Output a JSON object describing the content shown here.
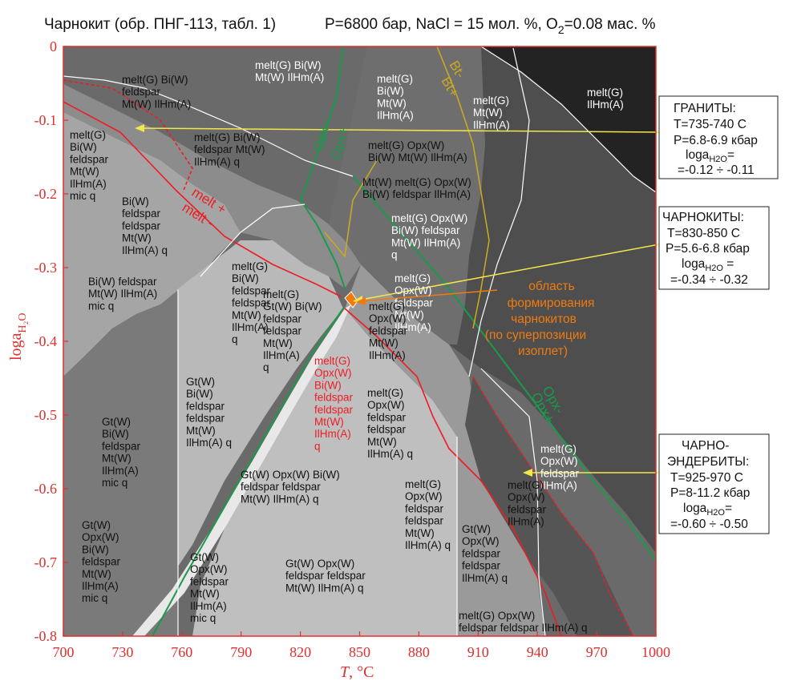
{
  "title": {
    "left": "Чарнокит (обр. ПНГ-113, табл. 1)",
    "right_pre": "P=6800 бар, NaCl = 15 мол. %, O",
    "right_sub": "2",
    "right_post": "=0.08 мас. %"
  },
  "axes": {
    "x": {
      "label_main": "T",
      "label_unit": ", °C",
      "range": [
        700,
        1000
      ],
      "ticks": [
        "700",
        "730",
        "760",
        "790",
        "820",
        "850",
        "880",
        "910",
        "940",
        "970",
        "1000"
      ]
    },
    "y": {
      "label_main": "loga",
      "label_sub": "H₂O",
      "range": [
        -0.8,
        0
      ],
      "ticks": [
        "0",
        "-0.1",
        "-0.2",
        "-0.3",
        "-0.4",
        "-0.5",
        "-0.6",
        "-0.7",
        "-0.8"
      ]
    }
  },
  "boundary_labels": {
    "melt_plus": "melt +",
    "melt_minus": "melt -",
    "opx_minus_top": "Opx-",
    "opx_plus_top": "Opx+",
    "bt_minus": "Bt-",
    "bt_plus": "Bt+",
    "opx_minus_right": "Opx-",
    "opx_plus_right": "Opx+"
  },
  "fields": [
    {
      "lines": [
        "melt(G) Bi(W)",
        "feldspar",
        "Mt(W) IlHm(A)"
      ],
      "color": "#111111"
    },
    {
      "lines": [
        "melt(G) Bi(W)",
        "Mt(W) IlHm(A)"
      ],
      "color": "#ffffff"
    },
    {
      "lines": [
        "melt(G)",
        "Bi(W)",
        "Mt(W)",
        "IlHm(A)"
      ],
      "color": "#ffffff"
    },
    {
      "lines": [
        "melt(G)",
        "Mt(W)",
        "IlHm(A)"
      ],
      "color": "#ffffff"
    },
    {
      "lines": [
        "melt(G)",
        "IlHm(A)"
      ],
      "color": "#ffffff"
    },
    {
      "lines": [
        "melt(G)",
        "Bi(W)",
        "feldspar",
        "Mt(W)",
        "IlHm(A)",
        "mic q"
      ],
      "color": "#111111"
    },
    {
      "lines": [
        "melt(G) Bi(W)",
        "feldspar Mt(W)",
        "IlHm(A) q"
      ],
      "color": "#111111"
    },
    {
      "lines": [
        "melt(G) Opx(W)",
        "Bi(W) Mt(W) IlHm(A)"
      ],
      "color": "#111111"
    },
    {
      "lines": [
        "Mt(W) melt(G) Opx(W)",
        "Bi(W) feldspar IlHm(A)"
      ],
      "color": "#111111"
    },
    {
      "lines": [
        "Bi(W)",
        "feldspar",
        "feldspar",
        "Mt(W)",
        "IlHm(A) q"
      ],
      "color": "#111111"
    },
    {
      "lines": [
        "melt(G) Opx(W)",
        "Bi(W) feldspar",
        "Mt(W) IlHm(A)",
        "q"
      ],
      "color": "#ffffff"
    },
    {
      "lines": [
        "Bi(W) feldspar",
        "Mt(W) IlHm(A)",
        "mic q"
      ],
      "color": "#111111"
    },
    {
      "lines": [
        "melt(G)",
        "Bi(W)",
        "feldspar",
        "feldspar",
        "Mt(W)",
        "IlHm(A)",
        "q"
      ],
      "color": "#111111"
    },
    {
      "lines": [
        "melt(G)",
        "Gt(W) Bi(W)",
        "feldspar",
        "feldspar",
        "Mt(W)",
        "IlHm(A)",
        "q"
      ],
      "color": "#111111"
    },
    {
      "lines": [
        "melt(G)",
        "Opx(W)",
        "feldspar",
        "Mt(W)",
        "IlHm(A)"
      ],
      "color": "#ffffff"
    },
    {
      "lines": [
        "melt(G)",
        "Opx(W)",
        "feldspar",
        "Mt(W)",
        "IlHm(A)"
      ],
      "color": "#111111"
    },
    {
      "lines": [
        "melt(G)",
        "Opx(W)",
        "Bi(W)",
        "feldspar",
        "feldspar",
        "Mt(W)",
        "IlHm(A)",
        "q"
      ],
      "color": "#ee1c24"
    },
    {
      "lines": [
        "Gt(W)",
        "Bi(W)",
        "feldspar",
        "feldspar",
        "Mt(W)",
        "IlHm(A) q"
      ],
      "color": "#111111"
    },
    {
      "lines": [
        "melt(G)",
        "Opx(W)",
        "feldspar",
        "feldspar",
        "Mt(W)",
        "IlHm(A) q"
      ],
      "color": "#111111"
    },
    {
      "lines": [
        "Gt(W)",
        "Bi(W)",
        "feldspar",
        "Mt(W)",
        "IlHm(A)",
        "mic q"
      ],
      "color": "#111111"
    },
    {
      "lines": [
        "Gt(W) Opx(W) Bi(W)",
        "feldspar feldspar",
        "Mt(W) IlHm(A) q"
      ],
      "color": "#111111"
    },
    {
      "lines": [
        "melt(G)",
        "Opx(W)",
        "feldspar",
        "feldspar",
        "Mt(W)",
        "IlHm(A) q"
      ],
      "color": "#111111"
    },
    {
      "lines": [
        "melt(G)",
        "Opx(W)",
        "feldspar",
        "IlHm(A)"
      ],
      "color": "#ffffff"
    },
    {
      "lines": [
        "melt(G)",
        "Opx(W)",
        "feldspar",
        "IlHm(A)"
      ],
      "color": "#111111"
    },
    {
      "lines": [
        "Gt(W)",
        "Opx(W)",
        "Bi(W)",
        "feldspar",
        "Mt(W)",
        "IlHm(A)",
        "mic q"
      ],
      "color": "#111111"
    },
    {
      "lines": [
        "Gt(W)",
        "Opx(W)",
        "feldspar",
        "Mt(W)",
        "IlHm(A)",
        "mic q"
      ],
      "color": "#111111"
    },
    {
      "lines": [
        "Gt(W) Opx(W)",
        "feldspar feldspar",
        "Mt(W) IlHm(A) q"
      ],
      "color": "#111111"
    },
    {
      "lines": [
        "Gt(W)",
        "Opx(W)",
        "feldspar",
        "feldspar",
        "IlHm(A) q"
      ],
      "color": "#111111"
    },
    {
      "lines": [
        "melt(G) Opx(W)",
        "feldspar feldspar IlHm(A) q"
      ],
      "color": "#111111"
    }
  ],
  "charnockite_region": {
    "lines": [
      "область",
      "формирования",
      "чарнокитов",
      "(по суперпозиции",
      "изоплет)"
    ],
    "color": "#f07a10"
  },
  "callouts": {
    "granites": {
      "title": "ГРАНИТЫ:",
      "t": "T=735-740 С",
      "p": "P=6.8-6.9 кбар",
      "a": "loga",
      "a_sub": "H2O",
      "a_eq": "=",
      "range": "=-0.12 ÷ -0.11"
    },
    "charnockites": {
      "title": "ЧАРНОКИТЫ:",
      "t": "T=830-850 С",
      "p": "P=5.6-6.8 кбар",
      "a": "loga",
      "a_sub": "H2O",
      "a_eq": " =",
      "range": "=-0.34 ÷ -0.32"
    },
    "charnoenderbites": {
      "title1": "ЧАРНО-",
      "title2": "ЭНДЕРБИТЫ:",
      "t": "T=925-970 С",
      "p": "P=8-11.2 кбар",
      "a": "loga",
      "a_sub": "H2O",
      "a_eq": "=",
      "range": "=-0.60 ÷ -0.50"
    }
  },
  "colors": {
    "axis": "#e03030",
    "melt_boundary": "#ee1c24",
    "opx_boundary": "#1a9a4a",
    "bt_boundary": "#c9a822",
    "arrow": "#f3e74a",
    "charnockite": "#f07a10"
  }
}
